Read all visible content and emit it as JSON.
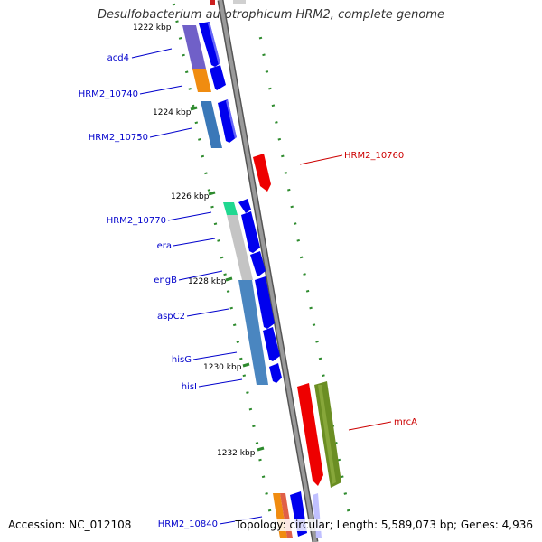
{
  "title": "Desulfobacterium autotrophicum HRM2, complete genome",
  "footer": {
    "accession": "Accession: NC_012108",
    "summary": "Topology: circular; Length: 5,589,073 bp; Genes: 4,936"
  },
  "ticks": [
    "1222 kbp",
    "1224 kbp",
    "1226 kbp",
    "1228 kbp",
    "1230 kbp",
    "1232 kbp"
  ],
  "gene_labels": [
    "acd4",
    "HRM2_10740",
    "HRM2_10750",
    "HRM2_10760",
    "HRM2_10770",
    "era",
    "engB",
    "aspC2",
    "hisG",
    "hisI",
    "mrcA",
    "HRM2_10840"
  ],
  "colors": {
    "forward_label": "#0000cc",
    "reverse_label": "#cc0000",
    "tick": "#2e8b2e",
    "backbone": "#8c8c8c",
    "arrow_forward": "#0000ee",
    "arrow_reverse": "#ee0000"
  }
}
